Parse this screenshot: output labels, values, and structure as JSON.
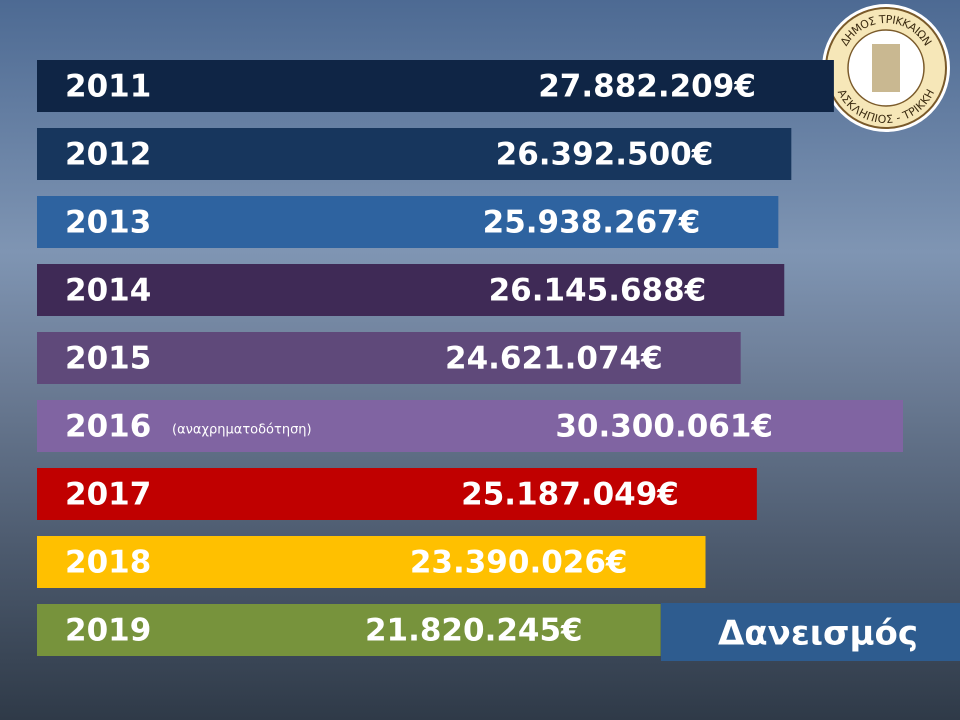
{
  "chart_data": {
    "type": "hbar",
    "title": "Δανεισμός",
    "categories": [
      "2011",
      "2012",
      "2013",
      "2014",
      "2015",
      "2016",
      "2017",
      "2018",
      "2019"
    ],
    "values": [
      27882209,
      26392500,
      25938267,
      26145688,
      24621074,
      30300061,
      25187049,
      23390026,
      21820245
    ],
    "value_labels": [
      "27.882.209€",
      "26.392.500€",
      "25.938.267€",
      "26.145.688€",
      "24.621.074€",
      "30.300.061€",
      "25.187.049€",
      "23.390.026€",
      "21.820.245€"
    ],
    "notes": [
      null,
      null,
      null,
      null,
      null,
      "(αναχρηματοδότηση)",
      null,
      null,
      null
    ],
    "colors": [
      "#0f2545",
      "#17365d",
      "#2e63a0",
      "#3f2a56",
      "#5f497a",
      "#8064a2",
      "#c00000",
      "#ffc000",
      "#77933c"
    ]
  },
  "logo": {
    "top": "ΔΗΜΟΣ ΤΡΙΚΚΑΙΩΝ",
    "bottom": "ΑΣΚΛΗΠΙΟΣ - ΤΡΙΚΚΗ"
  }
}
